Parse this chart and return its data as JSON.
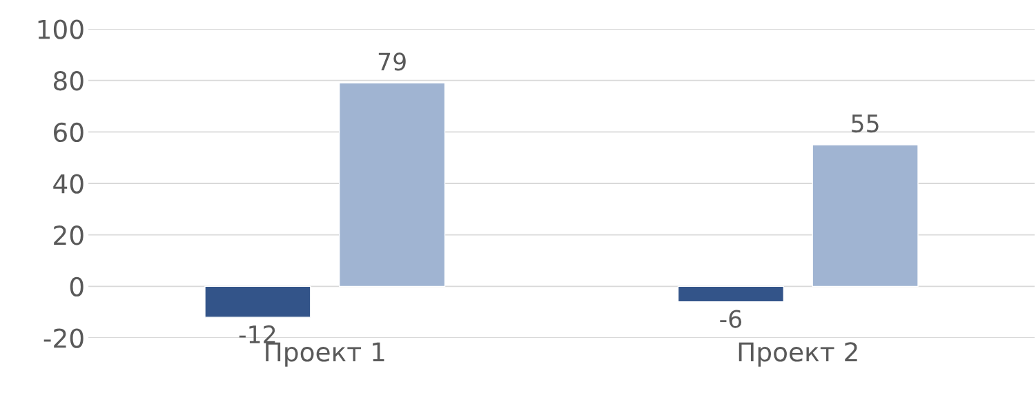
{
  "chart_data": {
    "type": "bar",
    "categories": [
      "Проект 1",
      "Проект 2"
    ],
    "series": [
      {
        "color": "#335489",
        "values": [
          -12,
          -6
        ]
      },
      {
        "color": "#a0b4d2",
        "values": [
          79,
          55
        ]
      }
    ],
    "ylim": [
      -20,
      100
    ],
    "yticks": [
      -20,
      0,
      20,
      40,
      60,
      80,
      100
    ],
    "grid": "y",
    "data_labels": true
  }
}
